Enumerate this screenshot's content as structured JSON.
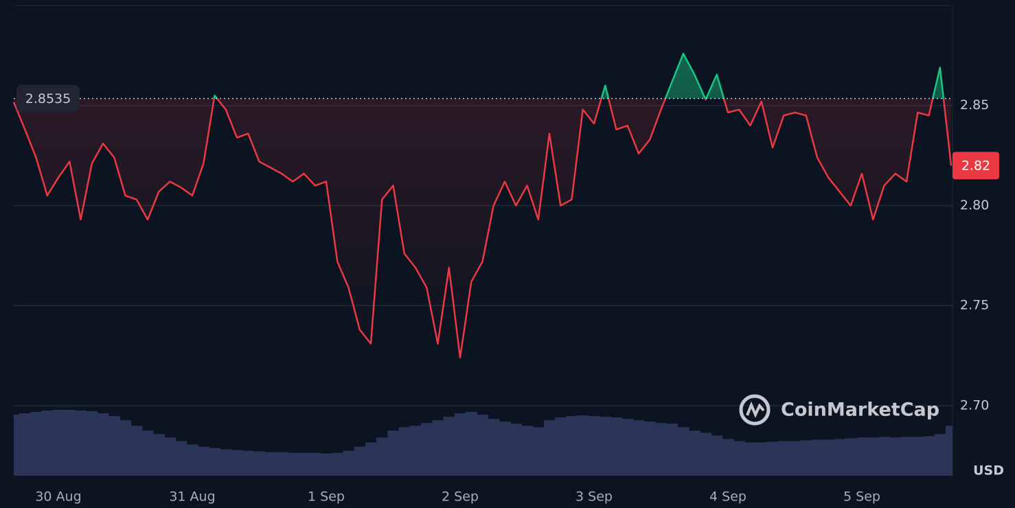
{
  "chart_data": {
    "type": "line",
    "baseline": 2.8535,
    "unit": "USD",
    "watermark": "CoinMarketCap",
    "xlim": [
      0,
      84
    ],
    "xticks": [
      {
        "value": 4,
        "label": "30 Aug"
      },
      {
        "value": 16,
        "label": "31 Aug"
      },
      {
        "value": 28,
        "label": "1 Sep"
      },
      {
        "value": 40,
        "label": "2 Sep"
      },
      {
        "value": 52,
        "label": "3 Sep"
      },
      {
        "value": 64,
        "label": "4 Sep"
      },
      {
        "value": 76,
        "label": "5 Sep"
      }
    ],
    "ylim": [
      2.665,
      2.9
    ],
    "yticks": [
      {
        "value": 2.7,
        "label": "2.70"
      },
      2.75,
      {
        "value": 2.8,
        "label": "2.80"
      },
      2.85
    ],
    "grid": true,
    "up_color": "#16c784",
    "down_color": "#ea3943",
    "series": [
      {
        "name": "Price",
        "values": [
          2.8517,
          2.838,
          2.824,
          2.805,
          2.814,
          2.822,
          2.793,
          2.821,
          2.831,
          2.824,
          2.805,
          2.803,
          2.793,
          2.807,
          2.812,
          2.809,
          2.805,
          2.821,
          2.855,
          2.848,
          2.834,
          2.836,
          2.822,
          2.819,
          2.816,
          2.812,
          2.816,
          2.81,
          2.812,
          2.772,
          2.759,
          2.738,
          2.731,
          2.803,
          2.81,
          2.776,
          2.769,
          2.759,
          2.731,
          2.769,
          2.724,
          2.762,
          2.772,
          2.8,
          2.812,
          2.8,
          2.81,
          2.793,
          2.836,
          2.8,
          2.803,
          2.848,
          2.841,
          2.86,
          2.838,
          2.84,
          2.826,
          2.833,
          2.848,
          2.862,
          2.876,
          2.8655,
          2.853,
          2.8655,
          2.8465,
          2.848,
          2.84,
          2.852,
          2.829,
          2.845,
          2.8465,
          2.845,
          2.824,
          2.814,
          2.807,
          2.8,
          2.816,
          2.793,
          2.81,
          2.816,
          2.812,
          2.8465,
          2.845,
          2.869,
          2.82
        ]
      }
    ],
    "volume": {
      "color": "#2b3557",
      "values": [
        88,
        90,
        92,
        94,
        95,
        95,
        94,
        93,
        90,
        86,
        80,
        72,
        65,
        60,
        55,
        50,
        45,
        42,
        40,
        38,
        37,
        36,
        35,
        34,
        34,
        33,
        33,
        33,
        32,
        33,
        36,
        42,
        48,
        55,
        65,
        70,
        72,
        76,
        80,
        85,
        90,
        92,
        88,
        82,
        78,
        75,
        72,
        70,
        80,
        84,
        86,
        87,
        86,
        85,
        84,
        82,
        80,
        78,
        76,
        75,
        70,
        65,
        62,
        58,
        53,
        50,
        48,
        48,
        49,
        50,
        50,
        51,
        52,
        52,
        53,
        54,
        55,
        55,
        56,
        55,
        56,
        56,
        57,
        60,
        72
      ]
    }
  }
}
